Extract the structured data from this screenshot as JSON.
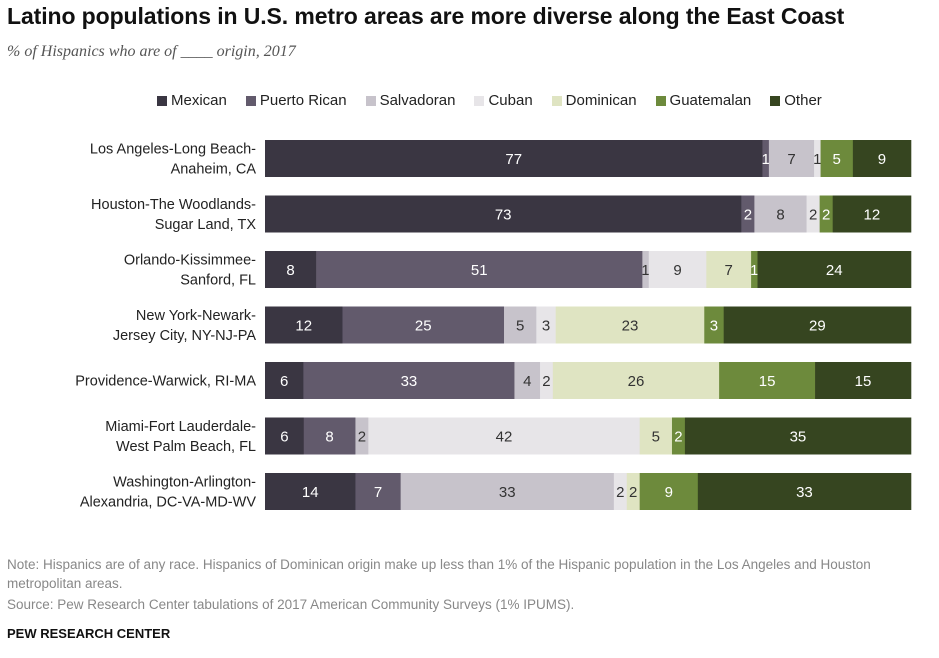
{
  "title": "Latino populations in U.S. metro areas are more diverse along the East Coast",
  "subtitle": "% of Hispanics who are of ____ origin, 2017",
  "note": "Note: Hispanics are of any race. Hispanics of Dominican origin make up less than 1% of the Hispanic population in the Los Angeles and Houston metropolitan areas.",
  "source": "Source: Pew Research Center tabulations of 2017 American Community Surveys (1% IPUMS).",
  "brand": "PEW RESEARCH CENTER",
  "chart_data": {
    "type": "bar",
    "orientation": "horizontal",
    "stacked": true,
    "title": "Latino populations in U.S. metro areas are more diverse along the East Coast",
    "subtitle": "% of Hispanics who are of ____ origin, 2017",
    "legend_placement": "top",
    "grid": false,
    "categories": [
      [
        "Los Angeles-Long Beach-",
        "Anaheim, CA"
      ],
      [
        "Houston-The Woodlands-",
        "Sugar Land, TX"
      ],
      [
        "Orlando-Kissimmee-",
        "Sanford, FL"
      ],
      [
        "New York-Newark-",
        "Jersey City, NY-NJ-PA"
      ],
      [
        "Providence-Warwick, RI-MA"
      ],
      [
        "Miami-Fort Lauderdale-",
        "West Palm Beach, FL"
      ],
      [
        "Washington-Arlington-",
        "Alexandria, DC-VA-MD-WV"
      ]
    ],
    "series": [
      {
        "name": "Mexican",
        "color": "#3a3642",
        "label_color": "#ffffff",
        "values": [
          77,
          73,
          8,
          12,
          6,
          6,
          14
        ]
      },
      {
        "name": "Puerto Rican",
        "color": "#625a6c",
        "label_color": "#ffffff",
        "values": [
          1,
          2,
          51,
          25,
          33,
          8,
          7
        ]
      },
      {
        "name": "Salvadoran",
        "color": "#c7c3cb",
        "label_color": "#333333",
        "values": [
          7,
          8,
          1,
          5,
          4,
          2,
          33
        ]
      },
      {
        "name": "Cuban",
        "color": "#e7e5e8",
        "label_color": "#333333",
        "values": [
          1,
          2,
          9,
          3,
          2,
          42,
          2
        ]
      },
      {
        "name": "Dominican",
        "color": "#dfe4c2",
        "label_color": "#333333",
        "values": [
          0,
          0,
          7,
          23,
          26,
          5,
          2
        ]
      },
      {
        "name": "Guatemalan",
        "color": "#6d8a3c",
        "label_color": "#ffffff",
        "values": [
          5,
          2,
          1,
          3,
          15,
          2,
          9
        ]
      },
      {
        "name": "Other",
        "color": "#364520",
        "label_color": "#ffffff",
        "values": [
          9,
          12,
          24,
          29,
          15,
          35,
          33
        ]
      }
    ]
  }
}
